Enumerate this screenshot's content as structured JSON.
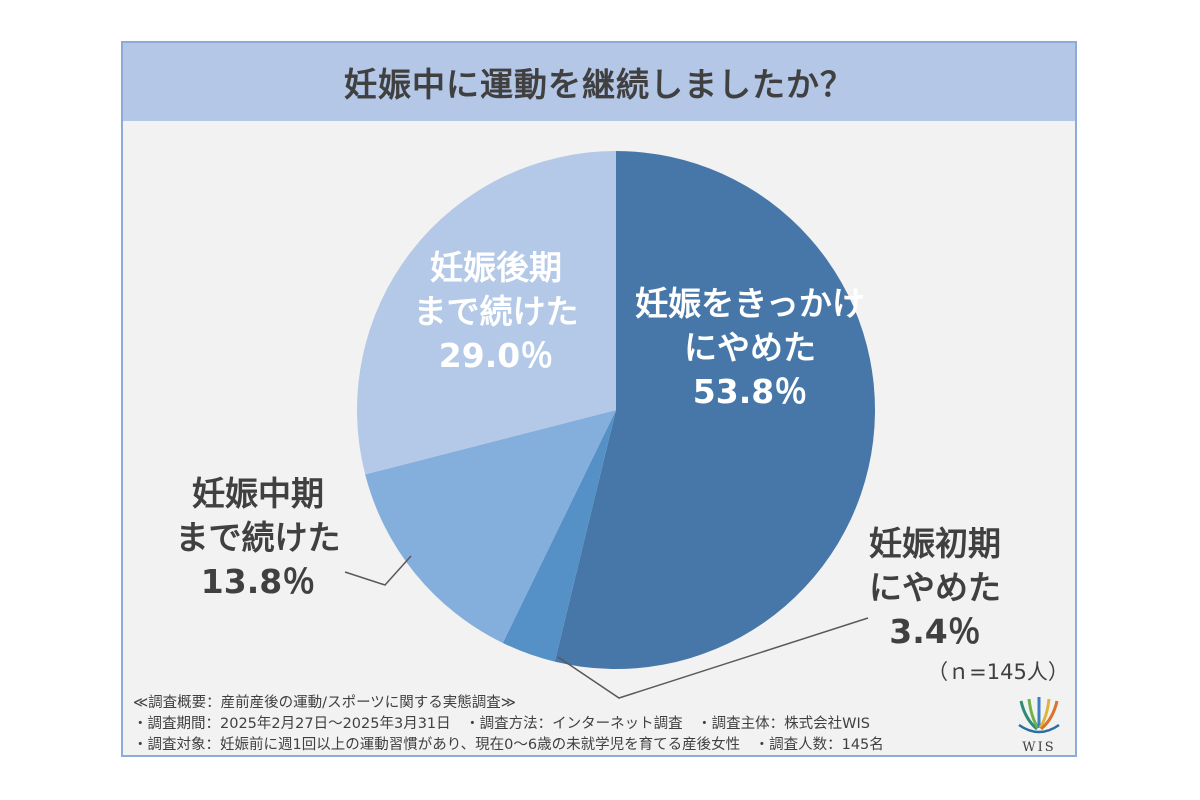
{
  "chart_data": {
    "type": "pie",
    "title": "妊娠中に運動を継続しましたか？",
    "note": "（ｎ=145人）",
    "slices": [
      {
        "label_lines": [
          "妊娠をきっかけ",
          "にやめた"
        ],
        "percent_text": "53.8％",
        "value": 53.8,
        "color": "#4677a8"
      },
      {
        "label_lines": [
          "妊娠初期",
          "にやめた"
        ],
        "percent_text": "3.4％",
        "value": 3.4,
        "color": "#5591c7"
      },
      {
        "label_lines": [
          "妊娠中期",
          "まで続けた"
        ],
        "percent_text": "13.8％",
        "value": 13.8,
        "color": "#84aedc"
      },
      {
        "label_lines": [
          "妊娠後期",
          "まで続けた"
        ],
        "percent_text": "29.0％",
        "value": 29.0,
        "color": "#b4c9e7"
      }
    ]
  },
  "footer": {
    "line1": "≪調査概要：産前産後の運動/スポーツに関する実態調査≫",
    "line2": "・調査期間：2025年2月27日～2025年3月31日　・調査方法：インターネット調査　・調査主体：株式会社WIS",
    "line3": "・調査対象：妊娠前に週1回以上の運動習慣があり、現在0～6歳の未就学児を育てる産後女性　・調査人数：145名"
  },
  "logo": {
    "text": "WIS",
    "icon": "wis-logo-icon"
  }
}
